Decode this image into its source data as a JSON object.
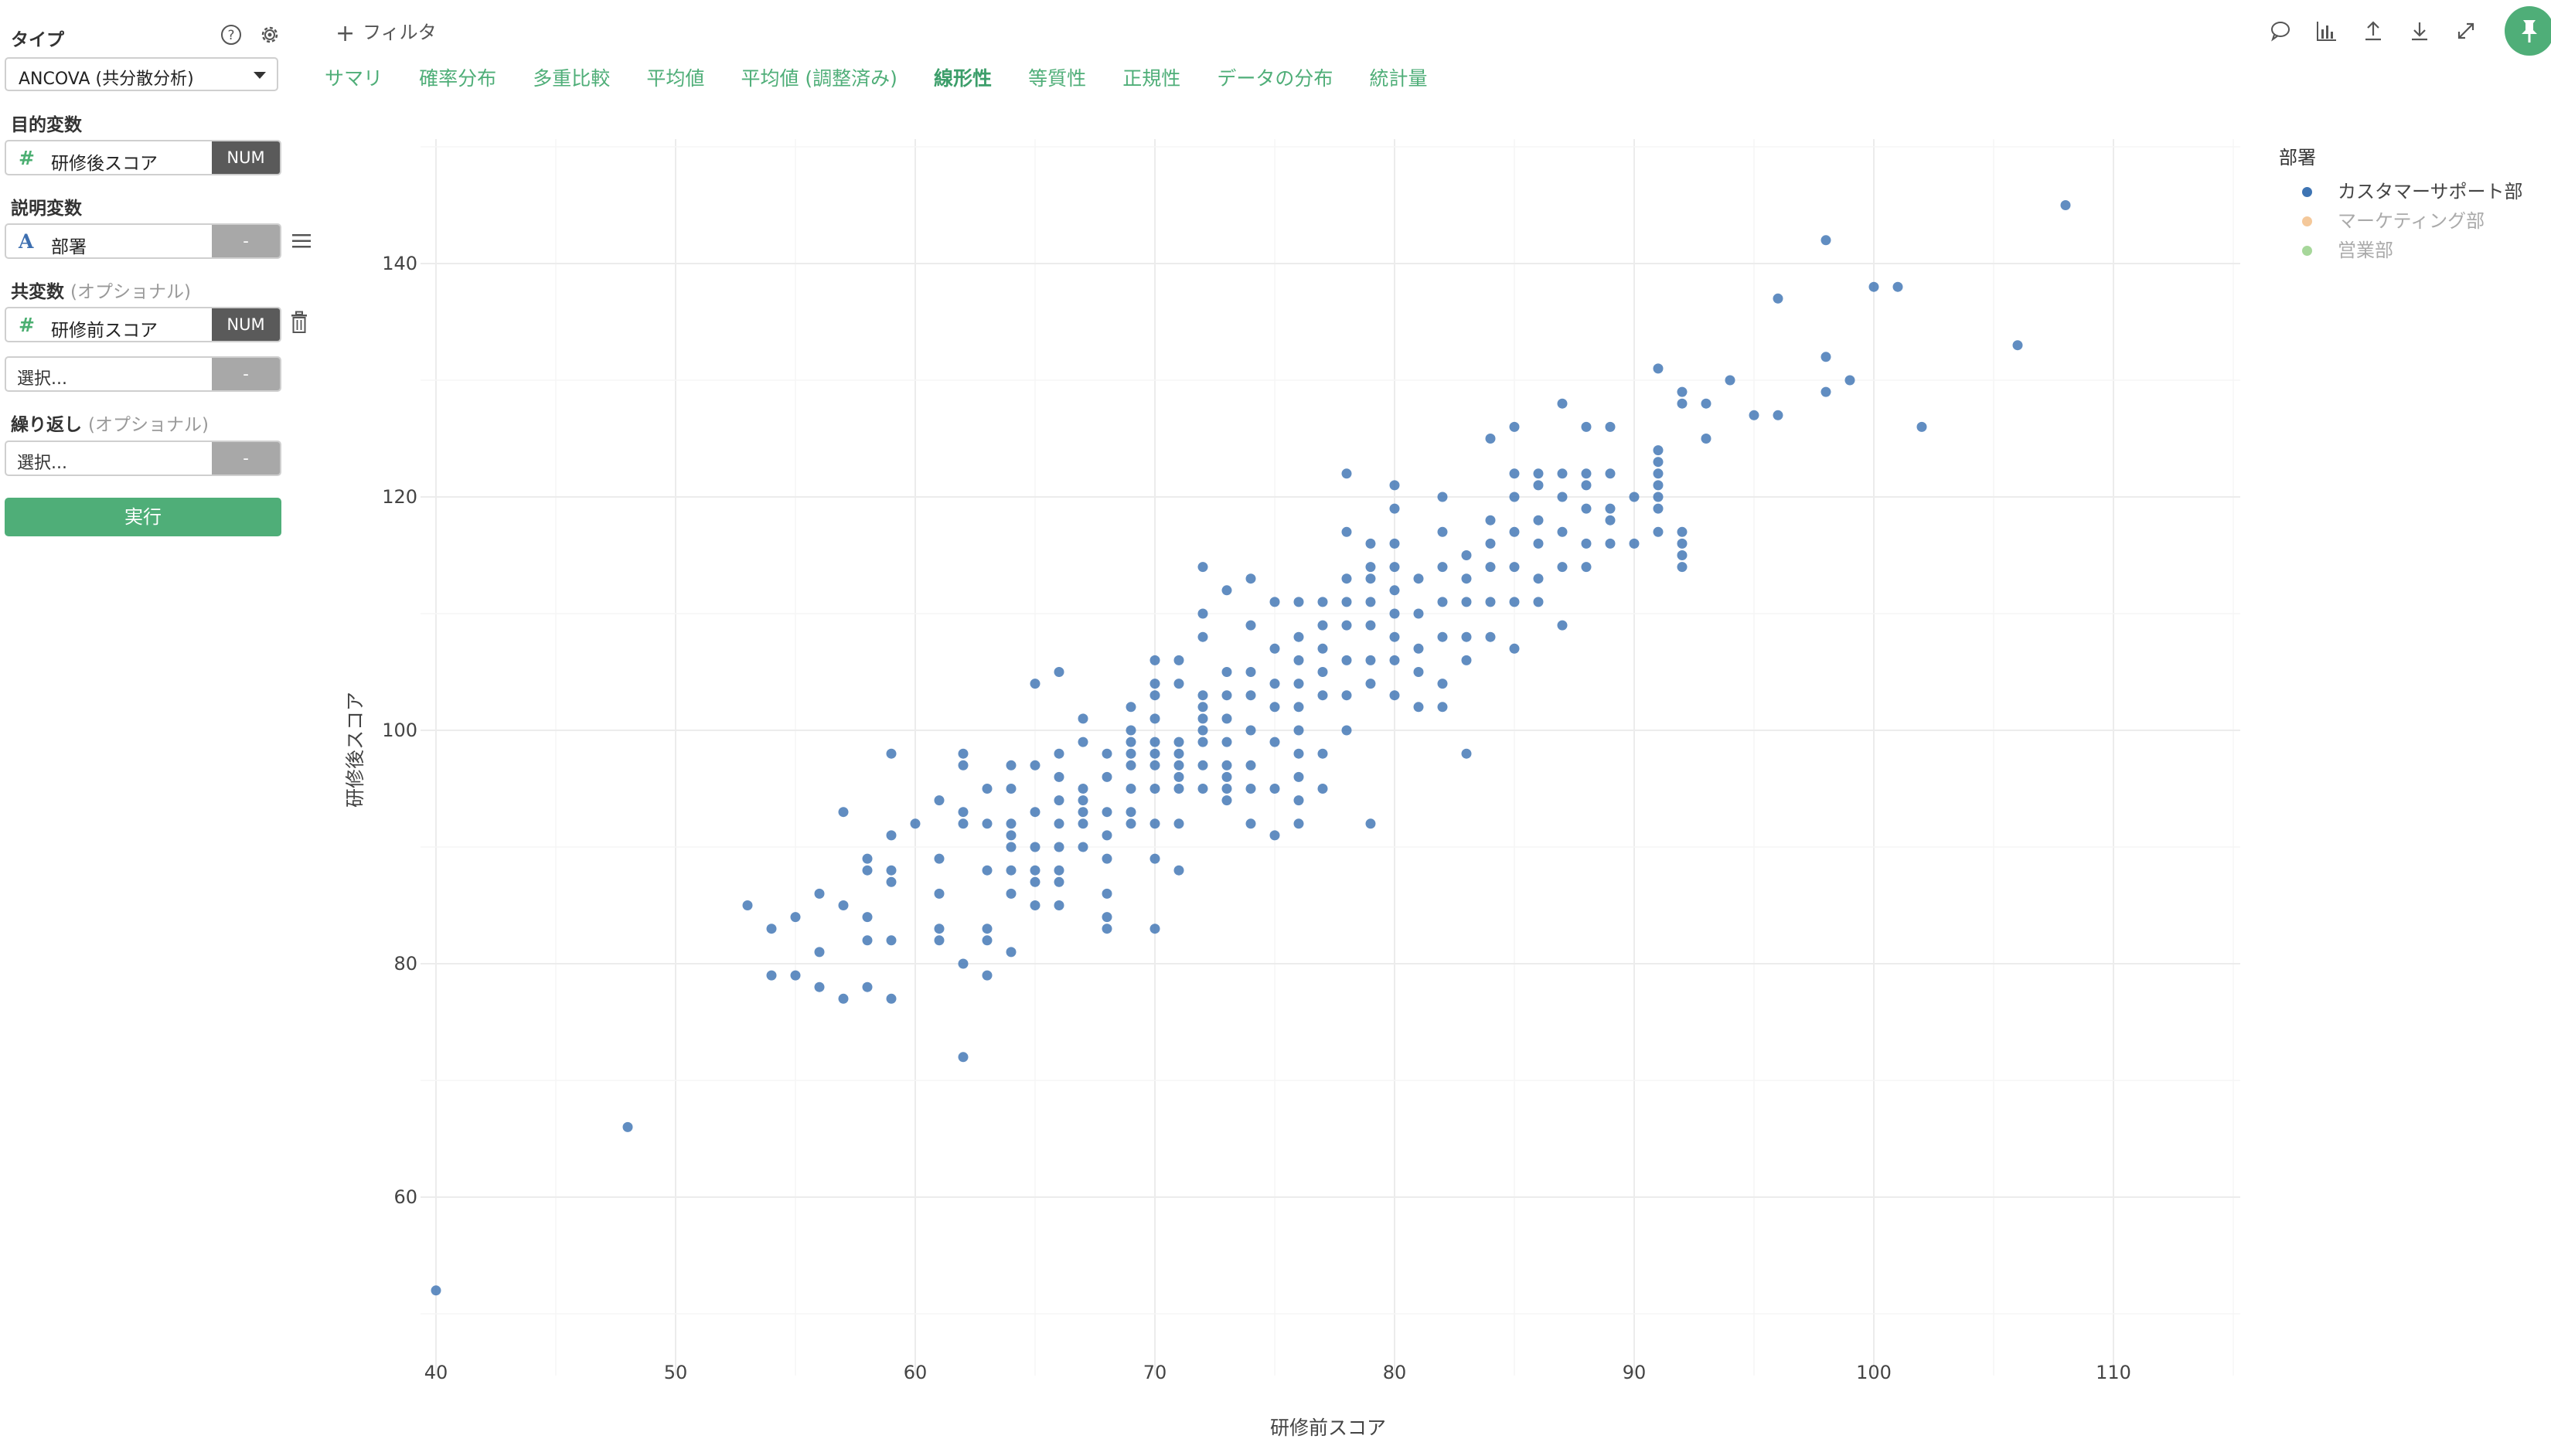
{
  "sidebar": {
    "type_label": "タイプ",
    "type_value": "ANCOVA (共分散分析)",
    "target_label": "目的変数",
    "target_field": "研修後スコア",
    "target_badge": "NUM",
    "explanatory_label": "説明変数",
    "explanatory_field": "部署",
    "explanatory_badge": "-",
    "covariate_label": "共変数",
    "covariate_optional": "(オプショナル)",
    "covariate_field": "研修前スコア",
    "covariate_badge": "NUM",
    "covariate_select_placeholder": "選択...",
    "covariate_select_badge": "-",
    "repeat_label": "繰り返し",
    "repeat_optional": "(オプショナル)",
    "repeat_placeholder": "選択...",
    "repeat_badge": "-",
    "run_label": "実行",
    "number_icon_glyph": "#",
    "char_icon_glyph": "A"
  },
  "header": {
    "filter_label": "フィルタ",
    "tabs": [
      {
        "label": "サマリ"
      },
      {
        "label": "確率分布"
      },
      {
        "label": "多重比較"
      },
      {
        "label": "平均値"
      },
      {
        "label": "平均値 (調整済み)"
      },
      {
        "label": "線形性"
      },
      {
        "label": "等質性"
      },
      {
        "label": "正規性"
      },
      {
        "label": "データの分布"
      },
      {
        "label": "統計量"
      }
    ],
    "active_tab": "線形性",
    "toolbar_icons": [
      "comment-icon",
      "chart-icon",
      "upload-icon",
      "download-icon",
      "expand-icon",
      "pin-icon"
    ]
  },
  "colors": {
    "accent": "#4fae78",
    "series_cs": "#3e74b3",
    "series_marketing": "#f4c89a",
    "series_sales": "#a6d79a"
  },
  "chart_data": {
    "type": "scatter",
    "xlabel": "研修前スコア",
    "ylabel": "研修後スコア",
    "xlim": [
      38,
      112
    ],
    "ylim": [
      47,
      150
    ],
    "xticks": [
      40,
      50,
      60,
      70,
      80,
      90,
      100,
      110
    ],
    "yticks": [
      60,
      80,
      100,
      120,
      140
    ],
    "grid": true,
    "legend": {
      "title": "部署",
      "placement": "top-right",
      "entries": [
        {
          "name": "カスタマーサポート部",
          "active": true
        },
        {
          "name": "マーケティング部",
          "active": false
        },
        {
          "name": "営業部",
          "active": false
        }
      ]
    },
    "series": [
      {
        "name": "カスタマーサポート部",
        "points": [
          [
            40,
            52
          ],
          [
            48,
            66
          ],
          [
            53,
            85
          ],
          [
            54,
            83
          ],
          [
            54,
            79
          ],
          [
            55,
            84
          ],
          [
            55,
            79
          ],
          [
            56,
            86
          ],
          [
            56,
            81
          ],
          [
            56,
            78
          ],
          [
            57,
            93
          ],
          [
            57,
            85
          ],
          [
            57,
            77
          ],
          [
            58,
            89
          ],
          [
            58,
            88
          ],
          [
            58,
            84
          ],
          [
            58,
            82
          ],
          [
            58,
            78
          ],
          [
            59,
            98
          ],
          [
            59,
            91
          ],
          [
            59,
            88
          ],
          [
            59,
            87
          ],
          [
            59,
            82
          ],
          [
            59,
            77
          ],
          [
            60,
            92
          ],
          [
            61,
            94
          ],
          [
            61,
            89
          ],
          [
            61,
            86
          ],
          [
            61,
            83
          ],
          [
            61,
            82
          ],
          [
            62,
            98
          ],
          [
            62,
            97
          ],
          [
            62,
            93
          ],
          [
            62,
            92
          ],
          [
            62,
            80
          ],
          [
            62,
            72
          ],
          [
            63,
            95
          ],
          [
            63,
            92
          ],
          [
            63,
            88
          ],
          [
            63,
            83
          ],
          [
            63,
            82
          ],
          [
            63,
            79
          ],
          [
            64,
            97
          ],
          [
            64,
            95
          ],
          [
            64,
            92
          ],
          [
            64,
            91
          ],
          [
            64,
            90
          ],
          [
            64,
            88
          ],
          [
            64,
            86
          ],
          [
            64,
            81
          ],
          [
            65,
            104
          ],
          [
            65,
            97
          ],
          [
            65,
            93
          ],
          [
            65,
            90
          ],
          [
            65,
            88
          ],
          [
            65,
            87
          ],
          [
            65,
            85
          ],
          [
            66,
            105
          ],
          [
            66,
            98
          ],
          [
            66,
            96
          ],
          [
            66,
            94
          ],
          [
            66,
            92
          ],
          [
            66,
            90
          ],
          [
            66,
            88
          ],
          [
            66,
            87
          ],
          [
            66,
            85
          ],
          [
            67,
            101
          ],
          [
            67,
            99
          ],
          [
            67,
            95
          ],
          [
            67,
            94
          ],
          [
            67,
            93
          ],
          [
            67,
            92
          ],
          [
            67,
            90
          ],
          [
            68,
            98
          ],
          [
            68,
            96
          ],
          [
            68,
            93
          ],
          [
            68,
            91
          ],
          [
            68,
            89
          ],
          [
            68,
            86
          ],
          [
            68,
            84
          ],
          [
            68,
            83
          ],
          [
            69,
            102
          ],
          [
            69,
            100
          ],
          [
            69,
            99
          ],
          [
            69,
            98
          ],
          [
            69,
            97
          ],
          [
            69,
            95
          ],
          [
            69,
            93
          ],
          [
            69,
            92
          ],
          [
            70,
            106
          ],
          [
            70,
            104
          ],
          [
            70,
            103
          ],
          [
            70,
            101
          ],
          [
            70,
            99
          ],
          [
            70,
            98
          ],
          [
            70,
            97
          ],
          [
            70,
            95
          ],
          [
            70,
            92
          ],
          [
            70,
            89
          ],
          [
            70,
            83
          ],
          [
            71,
            106
          ],
          [
            71,
            104
          ],
          [
            71,
            99
          ],
          [
            71,
            98
          ],
          [
            71,
            97
          ],
          [
            71,
            96
          ],
          [
            71,
            95
          ],
          [
            71,
            92
          ],
          [
            71,
            88
          ],
          [
            72,
            114
          ],
          [
            72,
            110
          ],
          [
            72,
            108
          ],
          [
            72,
            103
          ],
          [
            72,
            102
          ],
          [
            72,
            101
          ],
          [
            72,
            100
          ],
          [
            72,
            99
          ],
          [
            72,
            97
          ],
          [
            72,
            95
          ],
          [
            73,
            112
          ],
          [
            73,
            105
          ],
          [
            73,
            103
          ],
          [
            73,
            101
          ],
          [
            73,
            99
          ],
          [
            73,
            97
          ],
          [
            73,
            96
          ],
          [
            73,
            95
          ],
          [
            73,
            94
          ],
          [
            74,
            113
          ],
          [
            74,
            109
          ],
          [
            74,
            105
          ],
          [
            74,
            103
          ],
          [
            74,
            100
          ],
          [
            74,
            97
          ],
          [
            74,
            95
          ],
          [
            74,
            92
          ],
          [
            75,
            111
          ],
          [
            75,
            107
          ],
          [
            75,
            104
          ],
          [
            75,
            102
          ],
          [
            75,
            99
          ],
          [
            75,
            95
          ],
          [
            75,
            91
          ],
          [
            76,
            111
          ],
          [
            76,
            108
          ],
          [
            76,
            106
          ],
          [
            76,
            104
          ],
          [
            76,
            102
          ],
          [
            76,
            100
          ],
          [
            76,
            98
          ],
          [
            76,
            96
          ],
          [
            76,
            94
          ],
          [
            76,
            92
          ],
          [
            77,
            111
          ],
          [
            77,
            109
          ],
          [
            77,
            107
          ],
          [
            77,
            105
          ],
          [
            77,
            103
          ],
          [
            77,
            98
          ],
          [
            77,
            95
          ],
          [
            78,
            122
          ],
          [
            78,
            117
          ],
          [
            78,
            113
          ],
          [
            78,
            111
          ],
          [
            78,
            109
          ],
          [
            78,
            106
          ],
          [
            78,
            103
          ],
          [
            78,
            100
          ],
          [
            79,
            116
          ],
          [
            79,
            114
          ],
          [
            79,
            113
          ],
          [
            79,
            111
          ],
          [
            79,
            109
          ],
          [
            79,
            106
          ],
          [
            79,
            104
          ],
          [
            79,
            92
          ],
          [
            80,
            121
          ],
          [
            80,
            119
          ],
          [
            80,
            116
          ],
          [
            80,
            114
          ],
          [
            80,
            112
          ],
          [
            80,
            110
          ],
          [
            80,
            108
          ],
          [
            80,
            106
          ],
          [
            80,
            103
          ],
          [
            81,
            113
          ],
          [
            81,
            110
          ],
          [
            81,
            107
          ],
          [
            81,
            105
          ],
          [
            81,
            102
          ],
          [
            82,
            120
          ],
          [
            82,
            117
          ],
          [
            82,
            114
          ],
          [
            82,
            111
          ],
          [
            82,
            108
          ],
          [
            82,
            104
          ],
          [
            82,
            102
          ],
          [
            83,
            115
          ],
          [
            83,
            113
          ],
          [
            83,
            111
          ],
          [
            83,
            108
          ],
          [
            83,
            106
          ],
          [
            83,
            98
          ],
          [
            84,
            125
          ],
          [
            84,
            118
          ],
          [
            84,
            116
          ],
          [
            84,
            114
          ],
          [
            84,
            111
          ],
          [
            84,
            108
          ],
          [
            85,
            126
          ],
          [
            85,
            122
          ],
          [
            85,
            120
          ],
          [
            85,
            117
          ],
          [
            85,
            114
          ],
          [
            85,
            111
          ],
          [
            85,
            107
          ],
          [
            86,
            122
          ],
          [
            86,
            121
          ],
          [
            86,
            118
          ],
          [
            86,
            116
          ],
          [
            86,
            113
          ],
          [
            86,
            111
          ],
          [
            87,
            128
          ],
          [
            87,
            122
          ],
          [
            87,
            120
          ],
          [
            87,
            117
          ],
          [
            87,
            114
          ],
          [
            87,
            109
          ],
          [
            88,
            126
          ],
          [
            88,
            122
          ],
          [
            88,
            121
          ],
          [
            88,
            119
          ],
          [
            88,
            116
          ],
          [
            88,
            114
          ],
          [
            89,
            126
          ],
          [
            89,
            122
          ],
          [
            89,
            119
          ],
          [
            89,
            118
          ],
          [
            89,
            116
          ],
          [
            90,
            120
          ],
          [
            90,
            116
          ],
          [
            91,
            131
          ],
          [
            91,
            124
          ],
          [
            91,
            123
          ],
          [
            91,
            122
          ],
          [
            91,
            121
          ],
          [
            91,
            120
          ],
          [
            91,
            119
          ],
          [
            91,
            117
          ],
          [
            92,
            129
          ],
          [
            92,
            128
          ],
          [
            92,
            117
          ],
          [
            92,
            116
          ],
          [
            92,
            115
          ],
          [
            92,
            114
          ],
          [
            93,
            128
          ],
          [
            93,
            125
          ],
          [
            94,
            130
          ],
          [
            95,
            127
          ],
          [
            96,
            137
          ],
          [
            96,
            127
          ],
          [
            98,
            142
          ],
          [
            98,
            132
          ],
          [
            98,
            129
          ],
          [
            99,
            130
          ],
          [
            100,
            138
          ],
          [
            101,
            138
          ],
          [
            102,
            126
          ],
          [
            106,
            133
          ],
          [
            108,
            145
          ]
        ]
      }
    ]
  }
}
